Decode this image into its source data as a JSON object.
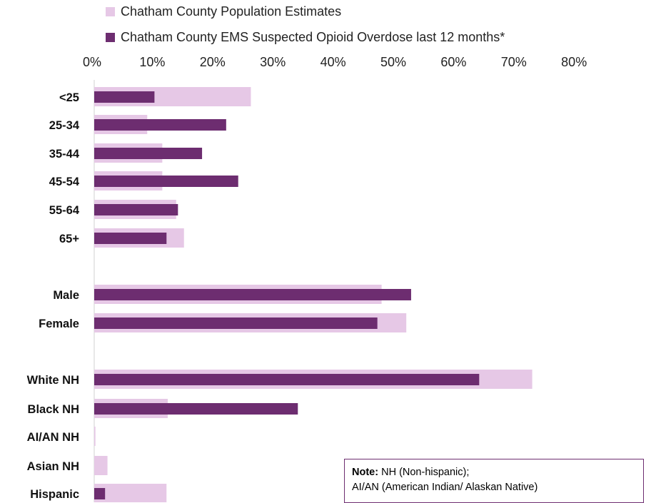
{
  "legend": {
    "population_label": "Chatham County Population Estimates",
    "ems_label": "Chatham County EMS Suspected Opioid Overdose last 12 months*"
  },
  "note": {
    "bold": "Note:",
    "line1": " NH (Non-hispanic);",
    "line2": "AI/AN (American Indian/ Alaskan Native)"
  },
  "colors": {
    "population": "#e6c8e6",
    "ems": "#6d2d70"
  },
  "chart_data": {
    "type": "bar",
    "orientation": "horizontal",
    "x_ticks": [
      "0%",
      "10%",
      "20%",
      "30%",
      "40%",
      "50%",
      "60%",
      "70%",
      "80%"
    ],
    "xlim": [
      0,
      80
    ],
    "x_axis_position": "top",
    "gridlines": false,
    "legend_position": "top",
    "categories": [
      "<25",
      "25-34",
      "35-44",
      "45-54",
      "55-64",
      "65+",
      "Male",
      "Female",
      "White NH",
      "Black NH",
      "AI/AN NH",
      "Asian NH",
      "Hispanic"
    ],
    "series": [
      {
        "name": "Chatham County Population Estimates",
        "values": [
          26,
          8.8,
          11.3,
          11.3,
          13.6,
          14.9,
          47.7,
          51.8,
          72.7,
          12.2,
          0.2,
          2.2,
          12
        ]
      },
      {
        "name": "Chatham County EMS Suspected Opioid Overdose last 12 months*",
        "values": [
          10,
          21.9,
          17.9,
          23.9,
          13.9,
          12,
          52.6,
          47,
          63.9,
          33.8,
          0,
          0,
          1.8
        ]
      }
    ]
  }
}
